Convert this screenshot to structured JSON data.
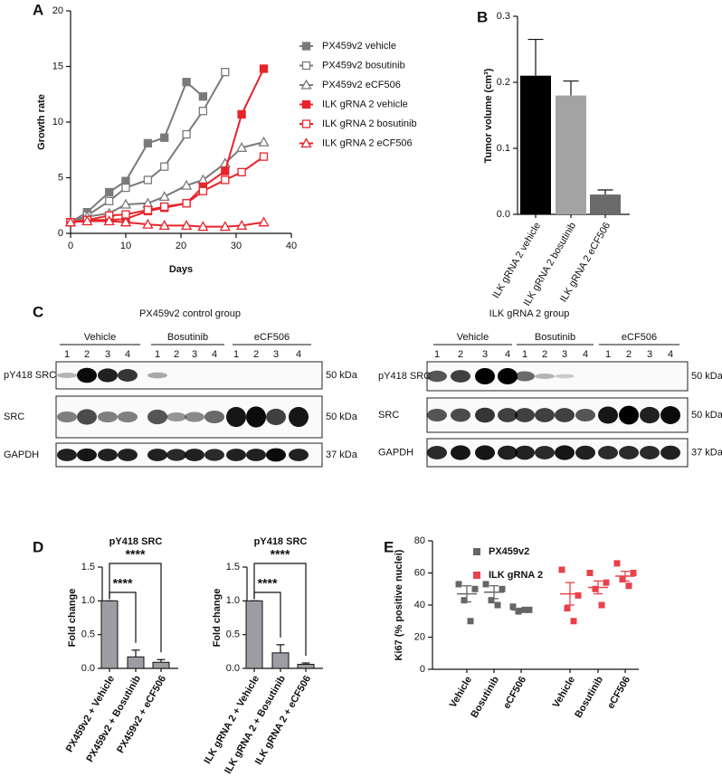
{
  "chart_data": [
    {
      "type": "line",
      "panel": "A",
      "x_label": "Days",
      "y_label": "Growth rate",
      "xlim": [
        0,
        40
      ],
      "xticks": [
        0,
        10,
        20,
        30,
        40
      ],
      "ylim": [
        0,
        20
      ],
      "yticks": [
        0,
        5,
        10,
        15,
        20
      ],
      "series": [
        {
          "name": "PX459v2 vehicle",
          "color": "#7a7a7a",
          "marker": "square",
          "x": [
            0,
            3,
            7,
            10,
            14,
            17,
            21,
            24
          ],
          "values": [
            1,
            1.9,
            3.7,
            4.7,
            8.1,
            8.6,
            13.6,
            12.3
          ]
        },
        {
          "name": "PX459v2 bosutinib",
          "color": "#7a7a7a",
          "marker": "open-square",
          "x": [
            0,
            3,
            7,
            10,
            14,
            17,
            21,
            24,
            28
          ],
          "values": [
            1,
            1.6,
            2.9,
            4.1,
            4.8,
            6.0,
            8.9,
            11.0,
            14.5
          ]
        },
        {
          "name": "PX459v2 eCF506",
          "color": "#7a7a7a",
          "marker": "open-triangle",
          "x": [
            0,
            3,
            7,
            10,
            14,
            17,
            21,
            24,
            28,
            31,
            35
          ],
          "values": [
            1,
            1.5,
            1.8,
            2.6,
            2.7,
            3.3,
            4.3,
            4.8,
            6.3,
            7.7,
            8.2
          ]
        },
        {
          "name": "ILK gRNA 2 vehicle",
          "color": "#e8242a",
          "marker": "square",
          "x": [
            0,
            3,
            7,
            10,
            14,
            17,
            21,
            24,
            28,
            31,
            35
          ],
          "values": [
            1,
            1.2,
            1.2,
            1.3,
            2.0,
            2.3,
            2.7,
            4.2,
            5.6,
            10.7,
            14.8
          ]
        },
        {
          "name": "ILK gRNA 2 bosutinib",
          "color": "#e8242a",
          "marker": "open-square",
          "x": [
            0,
            3,
            7,
            10,
            14,
            17,
            21,
            24,
            28,
            31,
            35
          ],
          "values": [
            1,
            1.2,
            1.6,
            1.7,
            2.1,
            2.4,
            2.7,
            3.8,
            4.8,
            5.5,
            6.9
          ]
        },
        {
          "name": "ILK gRNA 2 eCF506",
          "color": "#e8242a",
          "marker": "open-triangle",
          "x": [
            0,
            3,
            7,
            10,
            14,
            17,
            21,
            24,
            28,
            31,
            35
          ],
          "values": [
            1,
            1.1,
            1.1,
            1.0,
            0.8,
            0.7,
            0.7,
            0.6,
            0.6,
            0.7,
            1.0
          ]
        }
      ]
    },
    {
      "type": "bar",
      "panel": "B",
      "y_label": "Tumor volume (cm³)",
      "categories": [
        "ILK gRNA 2 vehicle",
        "ILK gRNA 2 bosutinib",
        "ILK gRNA 2 eCF506"
      ],
      "values": [
        0.21,
        0.18,
        0.03
      ],
      "errors": [
        0.055,
        0.022,
        0.007
      ],
      "colors": [
        "#000000",
        "#a3a3a3",
        "#6b6b6b"
      ],
      "ylim": [
        0,
        0.3
      ],
      "yticks": [
        {
          "value": 0,
          "label": "0.0"
        },
        0.1,
        0.2,
        0.3
      ]
    },
    {
      "type": "bar",
      "panel": "D",
      "title": "pY418 SRC",
      "y_label": "Fold change",
      "categories": [
        "PX459v2 + Vehicle",
        "PX459v2 + Bosutinib",
        "PX459v2 + eCF506"
      ],
      "values": [
        1,
        0.17,
        0.09
      ],
      "errors": [
        0,
        0.1,
        0.04
      ],
      "color": "#9d9da3",
      "significance": [
        "****",
        "****"
      ],
      "ylim": [
        0,
        1.5
      ],
      "yticks": [
        {
          "value": 0,
          "label": "0.0"
        },
        0.5,
        {
          "value": 1,
          "label": "1.0"
        },
        1.5
      ]
    },
    {
      "type": "bar",
      "title": "pY418 SRC",
      "y_label": "Fold change",
      "categories": [
        "ILK gRNA 2 + Vehicle",
        "ILK gRNA 2 + Bosutinib",
        "ILK gRNA 2 + eCF506"
      ],
      "values": [
        1,
        0.23,
        0.06
      ],
      "errors": [
        0,
        0.12,
        0.02
      ],
      "color": "#9d9da3",
      "significance": [
        "****",
        "****"
      ],
      "ylim": [
        0,
        1.5
      ],
      "yticks": [
        {
          "value": 0,
          "label": "0.0"
        },
        0.5,
        {
          "value": 1,
          "label": "1.0"
        },
        1.5
      ]
    },
    {
      "type": "dot",
      "panel": "E",
      "y_label": "Ki67 (% positive nuclei)",
      "ylim": [
        0,
        80
      ],
      "yticks": [
        0,
        20,
        40,
        60,
        80
      ],
      "groups": [
        {
          "name": "PX459v2",
          "color": "#666666",
          "categories": [
            "Vehicle",
            "Bosutinib",
            "eCF506"
          ],
          "points": [
            [
              53,
              50,
              43,
              30
            ],
            [
              53,
              50,
              43,
              40
            ],
            [
              39,
              37,
              36,
              37
            ]
          ],
          "means": [
            47,
            48,
            37
          ],
          "sems": [
            5,
            4,
            1
          ]
        },
        {
          "name": "ILK gRNA 2",
          "color": "#e8424a",
          "categories": [
            "Vehicle",
            "Bosutinib",
            "eCF506"
          ],
          "points": [
            [
              62,
              46,
              38,
              30
            ],
            [
              60,
              54,
              50,
              40
            ],
            [
              66,
              60,
              56,
              52
            ]
          ],
          "means": [
            47,
            51,
            58
          ],
          "sems": [
            7,
            4,
            3
          ]
        }
      ]
    }
  ],
  "blots": {
    "panel": "C",
    "lanes": [
      "1",
      "2",
      "3",
      "4"
    ],
    "groups": [
      {
        "title": "PX459v2 control group",
        "treatments": [
          "Vehicle",
          "Bosutinib",
          "eCF506"
        ]
      },
      {
        "title": "ILK gRNA 2 group",
        "treatments": [
          "Vehicle",
          "Bosutinib",
          "eCF506"
        ]
      }
    ],
    "rows": [
      {
        "label": "pY418 SRC",
        "size": "50 kDa"
      },
      {
        "label": "SRC",
        "size": "50 kDa"
      },
      {
        "label": "GAPDH",
        "size": "37 kDa"
      }
    ]
  }
}
